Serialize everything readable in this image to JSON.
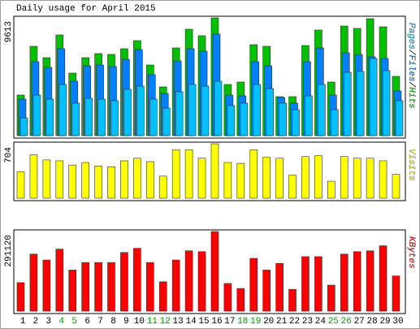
{
  "chart_data": [
    {
      "type": "bar",
      "title": "Daily usage for April 2015",
      "legend_separator": "/",
      "ylim": [
        0,
        9613
      ],
      "yticks": [
        9613
      ],
      "series": [
        {
          "name": "Pages",
          "color": "#00c0ff",
          "values": [
            1459,
            3315,
            2983,
            4177,
            2652,
            3050,
            2983,
            2851,
            3779,
            4044,
            2983,
            2254,
            3580,
            4177,
            4044,
            4442,
            2453,
            2652,
            4177,
            3845,
            2652,
            2122,
            3249,
            4177,
            2122,
            5171,
            5237,
            6298,
            5304,
            2851
          ]
        },
        {
          "name": "Files",
          "color": "#0080ff",
          "values": [
            2983,
            6033,
            5569,
            7094,
            4442,
            5702,
            5768,
            5635,
            6232,
            7028,
            4972,
            3447,
            6099,
            7094,
            6895,
            8287,
            3315,
            3249,
            6033,
            5702,
            3116,
            2652,
            6033,
            7160,
            3315,
            6762,
            6630,
            6431,
            6298,
            3646
          ]
        },
        {
          "name": "Hits",
          "color": "#00c000",
          "values": [
            3315,
            7293,
            6364,
            8221,
            5105,
            6364,
            6696,
            6630,
            7094,
            7757,
            5768,
            3978,
            7160,
            8685,
            8154,
            9613,
            4177,
            4376,
            7425,
            7293,
            3182,
            3182,
            7359,
            8619,
            4376,
            8950,
            8751,
            9547,
            8884,
            4840
          ]
        }
      ]
    },
    {
      "type": "bar",
      "ylim": [
        0,
        704
      ],
      "yticks": [
        704
      ],
      "series": [
        {
          "name": "Visits",
          "color": "#ffff00",
          "values": [
            341,
            561,
            495,
            484,
            429,
            462,
            418,
            407,
            484,
            517,
            473,
            286,
            627,
            627,
            517,
            704,
            462,
            451,
            627,
            528,
            517,
            297,
            539,
            550,
            220,
            539,
            517,
            517,
            484,
            308
          ]
        }
      ]
    },
    {
      "type": "bar",
      "ylim": [
        0,
        291120
      ],
      "yticks": [
        291120
      ],
      "categories": [
        "1",
        "2",
        "3",
        "4",
        "5",
        "6",
        "7",
        "8",
        "9",
        "10",
        "11",
        "12",
        "13",
        "14",
        "15",
        "16",
        "17",
        "18",
        "19",
        "20",
        "21",
        "22",
        "23",
        "24",
        "25",
        "26",
        "27",
        "28",
        "29",
        "30"
      ],
      "weekend_indices": [
        3,
        4,
        10,
        11,
        17,
        18,
        24,
        25
      ],
      "weekend_color": "#00a000",
      "series": [
        {
          "name": "KBytes",
          "color": "#ff0000",
          "values": [
            104190,
            208379,
            186928,
            226766,
            150156,
            177735,
            177735,
            177735,
            214508,
            229830,
            177735,
            107254,
            186928,
            220637,
            217572,
            291120,
            101125,
            82739,
            193057,
            150156,
            174671,
            79674,
            199186,
            199186,
            94996,
            208379,
            217572,
            220637,
            239025,
            128705
          ]
        }
      ]
    }
  ]
}
